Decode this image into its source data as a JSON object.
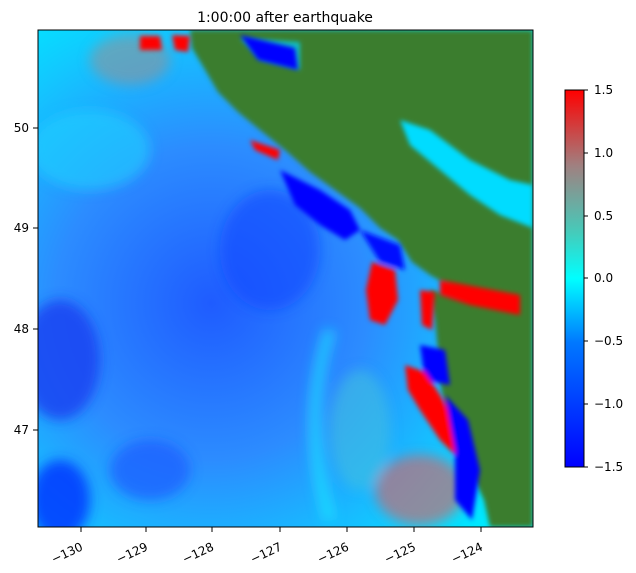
{
  "title": "1:00:00 after earthquake",
  "map": {
    "x_ticks": [
      "−130",
      "−129",
      "−128",
      "−127",
      "−126",
      "−125",
      "−124"
    ],
    "y_ticks": [
      "50",
      "49",
      "48",
      "47"
    ],
    "x_range": [
      -130.6,
      -123.2
    ],
    "y_range": [
      46.0,
      51.0
    ],
    "land_color": "#3a7d2d"
  },
  "colorbar": {
    "ticks": [
      "1.5",
      "1.0",
      "0.5",
      "0.0",
      "−0.5",
      "−1.0",
      "−1.5"
    ],
    "min": -1.5,
    "max": 1.5,
    "colors": [
      "#0000ff",
      "#00ffff",
      "#ff0000"
    ]
  }
}
